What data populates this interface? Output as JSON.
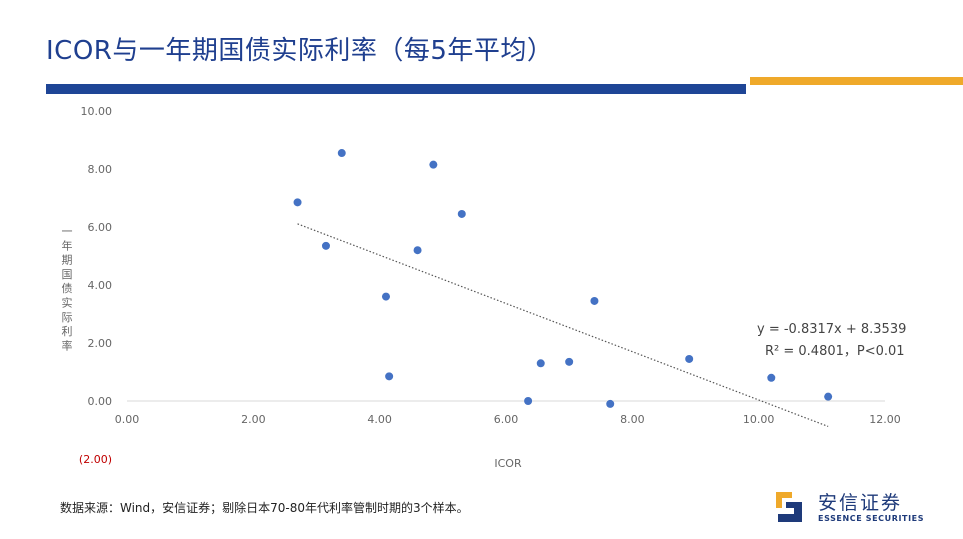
{
  "slide": {
    "title": "ICOR与一年期国债实际利率（每5年平均）",
    "source_note": "数据来源：Wind，安信证券；剔除日本70-80年代利率管制时期的3个样本。"
  },
  "logo": {
    "name": "安信证券",
    "subtitle": "ESSENCE SECURITIES",
    "brand_colors": {
      "dark": "#1e3a7a",
      "accent": "#efa92a"
    }
  },
  "colors": {
    "title": "#1f3f8f",
    "bar_blue": "#1e4596",
    "bar_orange": "#efa92a",
    "points": "#4472c4",
    "negative_label": "#c00000"
  },
  "chart_data": {
    "type": "scatter",
    "title": "",
    "xlabel": "ICOR",
    "ylabel": "一年期国债实际利率",
    "xlim": [
      0,
      12
    ],
    "ylim": [
      -2,
      10
    ],
    "x_ticks": [
      0,
      2,
      4,
      6,
      8,
      10,
      12
    ],
    "x_tick_labels": [
      "0.00",
      "2.00",
      "4.00",
      "6.00",
      "8.00",
      "10.00",
      "12.00"
    ],
    "y_ticks": [
      -2,
      0,
      2,
      4,
      6,
      8,
      10
    ],
    "y_tick_labels": [
      "(2.00)",
      "0.00",
      "2.00",
      "4.00",
      "6.00",
      "8.00",
      "10.00"
    ],
    "grid": false,
    "points": [
      {
        "x": 2.7,
        "y": 6.85
      },
      {
        "x": 3.15,
        "y": 5.35
      },
      {
        "x": 3.4,
        "y": 8.55
      },
      {
        "x": 4.1,
        "y": 3.6
      },
      {
        "x": 4.15,
        "y": 0.85
      },
      {
        "x": 4.6,
        "y": 5.2
      },
      {
        "x": 4.85,
        "y": 8.15
      },
      {
        "x": 5.3,
        "y": 6.45
      },
      {
        "x": 6.35,
        "y": 0.0
      },
      {
        "x": 6.55,
        "y": 1.3
      },
      {
        "x": 7.0,
        "y": 1.35
      },
      {
        "x": 7.4,
        "y": 3.45
      },
      {
        "x": 7.65,
        "y": -0.1
      },
      {
        "x": 8.9,
        "y": 1.45
      },
      {
        "x": 10.2,
        "y": 0.8
      },
      {
        "x": 11.1,
        "y": 0.15
      }
    ],
    "trendline": {
      "type": "linear",
      "slope": -0.8317,
      "intercept": 8.3539,
      "x_range": [
        2.7,
        11.1
      ],
      "equation_label": "y = -0.8317x + 8.3539",
      "r2_label": "R² = 0.4801，P<0.01"
    }
  }
}
